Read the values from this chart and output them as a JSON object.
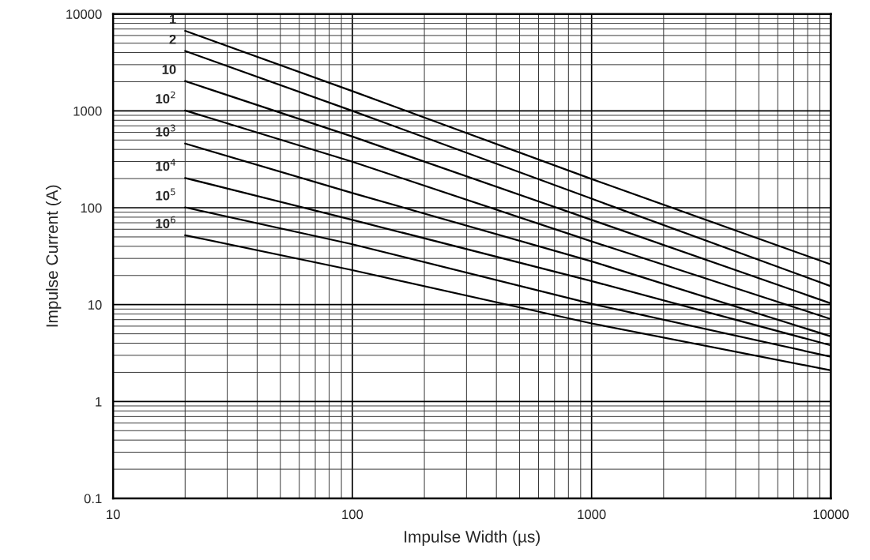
{
  "chart_data": {
    "type": "line",
    "xlabel": "Impulse Width (µs)",
    "ylabel": "Impulse Current (A)",
    "x": [
      20,
      100,
      1000,
      10000
    ],
    "series": [
      {
        "name": "1",
        "color": "#000000",
        "values": [
          6700,
          1600,
          198,
          26
        ]
      },
      {
        "name": "2",
        "color": "#000000",
        "values": [
          4150,
          1000,
          124,
          15.5
        ]
      },
      {
        "name": "10",
        "color": "#000000",
        "values": [
          2030,
          543,
          75,
          10.3
        ]
      },
      {
        "name": "10$^{2}$",
        "color": "#000000",
        "values": [
          1010,
          299,
          45,
          7.1
        ]
      },
      {
        "name": "10$^{3}$",
        "color": "#000000",
        "values": [
          460,
          142,
          28,
          4.7
        ]
      },
      {
        "name": "10$^{4}$",
        "color": "#000000",
        "values": [
          203,
          75,
          17.5,
          3.8
        ]
      },
      {
        "name": "10$^{5}$",
        "color": "#000000",
        "values": [
          101,
          42,
          10.2,
          2.9
        ]
      },
      {
        "name": "10$^{6}$",
        "color": "#000000",
        "values": [
          52,
          22.7,
          6.4,
          2.1
        ]
      }
    ],
    "log": "xy",
    "xlim": [
      10,
      10000
    ],
    "ylim": [
      0.1,
      10000
    ],
    "xticks": [
      10,
      100,
      1000,
      10000
    ],
    "yticks": [
      0.1,
      1,
      10,
      100,
      1000,
      10000
    ],
    "grid": true,
    "legend": false,
    "marker": "none",
    "line_style": "solid"
  }
}
